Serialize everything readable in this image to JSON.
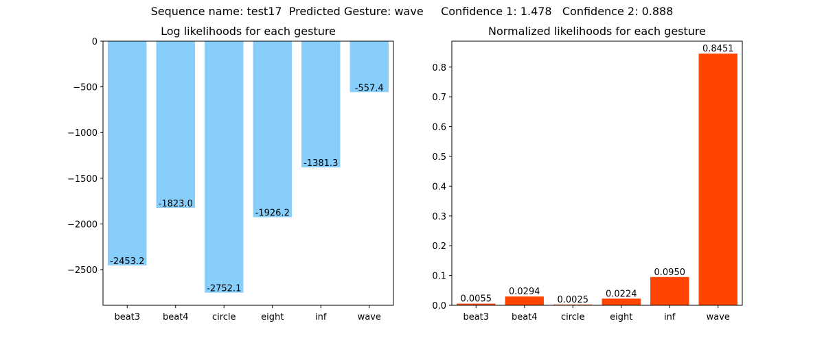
{
  "figure": {
    "suptitle": "Sequence name: test17  Predicted Gesture: wave     Confidence 1: 1.478   Confidence 2: 0.888"
  },
  "chart_data": [
    {
      "type": "bar",
      "title": "Log likelihoods for each gesture",
      "xlabel": "",
      "ylabel": "",
      "categories": [
        "beat3",
        "beat4",
        "circle",
        "eight",
        "inf",
        "wave"
      ],
      "values": [
        -2453.2,
        -1823.0,
        -2752.1,
        -1926.2,
        -1381.3,
        -557.4
      ],
      "value_labels": [
        "-2453.2",
        "-1823.0",
        "-2752.1",
        "-1926.2",
        "-1381.3",
        "-557.4"
      ],
      "ylim": [
        -2890,
        0
      ],
      "yticks": [
        0,
        -500,
        -1000,
        -1500,
        -2000,
        -2500
      ],
      "ytick_labels": [
        "0",
        "−500",
        "−1000",
        "−1500",
        "−2000",
        "−2500"
      ],
      "color": "#87CEFA",
      "grid": false
    },
    {
      "type": "bar",
      "title": "Normalized likelihoods for each gesture",
      "xlabel": "",
      "ylabel": "",
      "categories": [
        "beat3",
        "beat4",
        "circle",
        "eight",
        "inf",
        "wave"
      ],
      "values": [
        0.0055,
        0.0294,
        0.0025,
        0.0224,
        0.095,
        0.8451
      ],
      "value_labels": [
        "0.0055",
        "0.0294",
        "0.0025",
        "0.0224",
        "0.0950",
        "0.8451"
      ],
      "ylim": [
        0,
        0.887
      ],
      "yticks": [
        0,
        0.1,
        0.2,
        0.3,
        0.4,
        0.5,
        0.6,
        0.7,
        0.8
      ],
      "ytick_labels": [
        "0.0",
        "0.1",
        "0.2",
        "0.3",
        "0.4",
        "0.5",
        "0.6",
        "0.7",
        "0.8"
      ],
      "color": "#FF4500",
      "grid": false
    }
  ]
}
